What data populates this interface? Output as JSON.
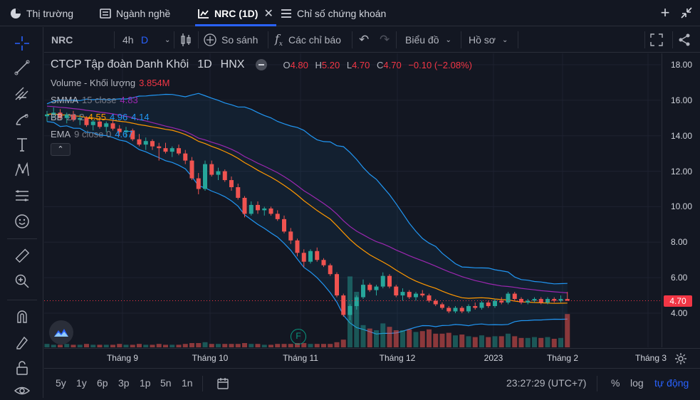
{
  "tabs": [
    {
      "label": "Thị trường",
      "icon": "pie-chart-icon"
    },
    {
      "label": "Ngành nghề",
      "icon": "list-icon"
    },
    {
      "label": "NRC (1D)",
      "icon": "chart-icon",
      "active": true
    },
    {
      "label": "Chỉ số chứng khoán",
      "icon": "menu-icon"
    }
  ],
  "toolbar": {
    "symbol": "NRC",
    "interval": "4h",
    "interval_active": "D",
    "compare": "So sánh",
    "indicators": "Các chỉ báo",
    "chart_type": "Biểu đồ",
    "profile": "Hồ sơ"
  },
  "legend": {
    "name": "CTCP Tập đoàn Danh Khôi",
    "interval": "1D",
    "exchange": "HNX",
    "open_k": "O",
    "open": "4.80",
    "high_k": "H",
    "high": "5.20",
    "low_k": "L",
    "low": "4.70",
    "close_k": "C",
    "close": "4.70",
    "change": "−0.10 (−2.08%)",
    "volume_label": "Volume - Khối lượng",
    "volume_value": "3.854M",
    "smma_label": "SMMA",
    "smma_params": "15 close",
    "smma_value": "4.83",
    "bb_label": "BB",
    "bb_params": "20 2",
    "bb_basis": "4.55",
    "bb_upper": "4.96",
    "bb_lower": "4.14",
    "ema_label": "EMA",
    "ema_params": "9 close 0",
    "ema_value": "4.67",
    "collapse": "⌃"
  },
  "price_scale": {
    "labels": [
      "18.00",
      "16.00",
      "14.00",
      "12.00",
      "10.00",
      "8.00",
      "6.00",
      "4.00"
    ],
    "current": "4.70"
  },
  "time_scale": {
    "labels": [
      "Tháng 9",
      "Tháng 10",
      "Tháng 11",
      "Tháng 12",
      "2023",
      "Tháng 2",
      "Tháng 3"
    ]
  },
  "marker": {
    "label": "F"
  },
  "bottom": {
    "ranges": [
      "5y",
      "1y",
      "6p",
      "3p",
      "1p",
      "5n",
      "1n"
    ],
    "time": "23:27:29 (UTC+7)",
    "percent": "%",
    "log": "log",
    "auto": "tự động"
  },
  "chart_data": {
    "type": "candlestick",
    "y_range": [
      2.0,
      18.5
    ],
    "colors": {
      "up": "#26a69a",
      "down": "#ef5350",
      "bb": "#2196f3",
      "ema": "#ff9800",
      "smma": "#9c27b0"
    },
    "candles": [
      [
        15.1,
        15.4,
        14.8,
        15.2
      ],
      [
        15.2,
        15.6,
        15.0,
        15.3
      ],
      [
        15.3,
        15.5,
        14.9,
        15.0
      ],
      [
        15.0,
        15.3,
        14.7,
        15.2
      ],
      [
        15.2,
        15.4,
        14.8,
        14.9
      ],
      [
        14.9,
        15.2,
        14.6,
        15.0
      ],
      [
        15.0,
        15.1,
        14.5,
        14.6
      ],
      [
        14.6,
        14.9,
        14.3,
        14.8
      ],
      [
        14.8,
        15.0,
        14.4,
        14.5
      ],
      [
        14.5,
        14.8,
        14.2,
        14.7
      ],
      [
        14.7,
        14.9,
        14.3,
        14.4
      ],
      [
        14.4,
        14.6,
        14.0,
        14.2
      ],
      [
        14.2,
        14.5,
        13.9,
        14.3
      ],
      [
        14.3,
        14.4,
        13.7,
        13.8
      ],
      [
        13.8,
        14.1,
        13.4,
        13.5
      ],
      [
        13.5,
        13.9,
        13.2,
        13.7
      ],
      [
        13.7,
        13.8,
        13.2,
        13.4
      ],
      [
        13.4,
        13.6,
        12.6,
        13.3
      ],
      [
        13.3,
        13.6,
        13.0,
        13.1
      ],
      [
        13.1,
        13.4,
        12.8,
        13.3
      ],
      [
        13.3,
        13.5,
        12.9,
        13.0
      ],
      [
        13.0,
        13.2,
        12.4,
        12.6
      ],
      [
        12.6,
        12.8,
        11.5,
        11.6
      ],
      [
        11.6,
        11.9,
        10.7,
        11.0
      ],
      [
        11.0,
        12.6,
        10.9,
        12.4
      ],
      [
        12.4,
        12.6,
        11.7,
        11.8
      ],
      [
        11.8,
        12.2,
        11.5,
        12.0
      ],
      [
        12.0,
        12.1,
        11.4,
        11.5
      ],
      [
        11.5,
        11.7,
        10.9,
        11.1
      ],
      [
        11.1,
        11.3,
        10.4,
        10.5
      ],
      [
        10.5,
        10.6,
        9.4,
        9.6
      ],
      [
        9.6,
        10.3,
        9.5,
        10.1
      ],
      [
        10.1,
        10.3,
        9.6,
        9.8
      ],
      [
        9.8,
        10.0,
        9.5,
        9.9
      ],
      [
        9.9,
        10.0,
        9.5,
        9.6
      ],
      [
        9.6,
        9.8,
        9.2,
        9.3
      ],
      [
        9.3,
        9.5,
        8.5,
        8.6
      ],
      [
        8.6,
        8.8,
        7.9,
        8.1
      ],
      [
        8.1,
        8.2,
        7.2,
        7.4
      ],
      [
        7.4,
        7.6,
        6.6,
        6.9
      ],
      [
        6.9,
        7.6,
        6.8,
        7.5
      ],
      [
        7.5,
        7.7,
        6.9,
        7.0
      ],
      [
        7.0,
        7.1,
        6.6,
        6.7
      ],
      [
        6.7,
        6.8,
        6.1,
        6.2
      ],
      [
        6.2,
        6.3,
        4.9,
        5.0
      ],
      [
        5.0,
        5.1,
        3.8,
        3.9
      ],
      [
        3.9,
        4.5,
        3.6,
        4.4
      ],
      [
        4.4,
        5.0,
        4.2,
        4.9
      ],
      [
        4.9,
        5.9,
        4.8,
        5.6
      ],
      [
        5.6,
        5.7,
        5.2,
        5.3
      ],
      [
        5.3,
        5.6,
        5.0,
        5.5
      ],
      [
        5.5,
        6.3,
        5.4,
        6.1
      ],
      [
        6.1,
        6.2,
        5.4,
        5.5
      ],
      [
        5.5,
        5.6,
        4.9,
        5.0
      ],
      [
        5.0,
        5.4,
        4.7,
        5.2
      ],
      [
        5.2,
        5.3,
        4.8,
        4.9
      ],
      [
        4.9,
        5.2,
        4.7,
        5.1
      ],
      [
        5.1,
        5.3,
        4.9,
        5.0
      ],
      [
        5.0,
        5.1,
        4.6,
        4.7
      ],
      [
        4.7,
        4.8,
        4.4,
        4.5
      ],
      [
        4.5,
        4.6,
        4.2,
        4.3
      ],
      [
        4.3,
        4.4,
        4.0,
        4.1
      ],
      [
        4.1,
        4.4,
        4.0,
        4.3
      ],
      [
        4.3,
        4.4,
        4.0,
        4.1
      ],
      [
        4.1,
        4.5,
        4.0,
        4.4
      ],
      [
        4.4,
        4.6,
        4.2,
        4.3
      ],
      [
        4.3,
        4.7,
        4.2,
        4.6
      ],
      [
        4.6,
        4.7,
        4.3,
        4.4
      ],
      [
        4.4,
        4.8,
        4.3,
        4.7
      ],
      [
        4.7,
        4.9,
        4.5,
        4.6
      ],
      [
        4.6,
        5.2,
        4.5,
        5.1
      ],
      [
        5.1,
        5.2,
        4.7,
        4.8
      ],
      [
        4.8,
        4.9,
        4.5,
        4.6
      ],
      [
        4.6,
        4.8,
        4.5,
        4.7
      ],
      [
        4.7,
        4.9,
        4.6,
        4.8
      ],
      [
        4.8,
        4.9,
        4.5,
        4.6
      ],
      [
        4.6,
        4.9,
        4.5,
        4.8
      ],
      [
        4.8,
        4.9,
        4.6,
        4.7
      ],
      [
        4.7,
        5.0,
        4.6,
        4.8
      ],
      [
        4.8,
        5.2,
        4.7,
        4.7
      ]
    ],
    "volume": [
      0.4,
      0.3,
      0.3,
      0.4,
      0.3,
      0.3,
      0.4,
      0.3,
      0.3,
      0.3,
      0.3,
      0.4,
      0.3,
      0.3,
      0.4,
      0.3,
      0.3,
      0.4,
      0.3,
      0.3,
      0.3,
      0.4,
      0.5,
      0.5,
      0.6,
      0.4,
      0.4,
      0.4,
      0.4,
      0.4,
      0.5,
      0.4,
      0.4,
      0.3,
      0.3,
      0.4,
      0.4,
      0.4,
      0.5,
      0.5,
      0.4,
      0.4,
      0.4,
      0.4,
      0.6,
      0.9,
      8.3,
      6.5,
      2.6,
      2.2,
      2.0,
      2.8,
      2.4,
      2.0,
      2.0,
      2.1,
      1.8,
      1.9,
      2.1,
      1.6,
      1.6,
      1.7,
      1.4,
      1.5,
      1.3,
      1.2,
      1.4,
      1.2,
      1.3,
      1.3,
      1.6,
      1.3,
      1.1,
      1.1,
      1.2,
      1.1,
      1.2,
      1.0,
      1.1,
      3.9
    ]
  }
}
